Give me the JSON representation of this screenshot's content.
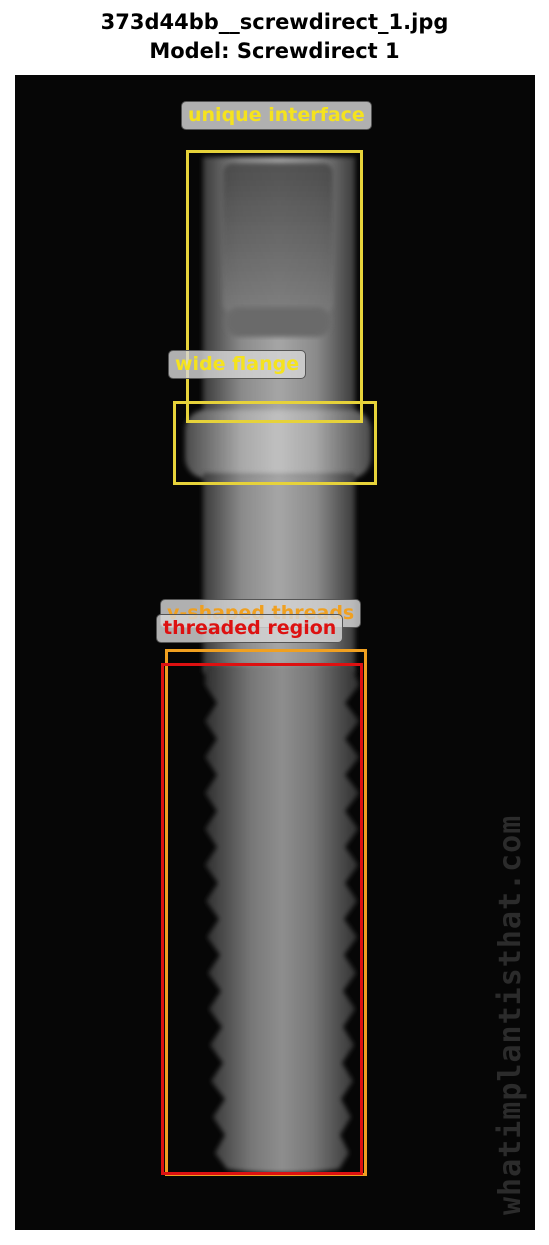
{
  "figure": {
    "title_line1": "373d44bb__screwdirect_1.jpg",
    "title_line2": "Model: Screwdirect 1"
  },
  "annotations": [
    {
      "label": "unique interface",
      "color": "#e6d23a"
    },
    {
      "label": "wide flange",
      "color": "#e6d23a"
    },
    {
      "label": "v-shaped threads",
      "color": "#f0a020"
    },
    {
      "label": "threaded region",
      "color": "#dd1111"
    }
  ],
  "watermark": "whatimplantisthat.com"
}
